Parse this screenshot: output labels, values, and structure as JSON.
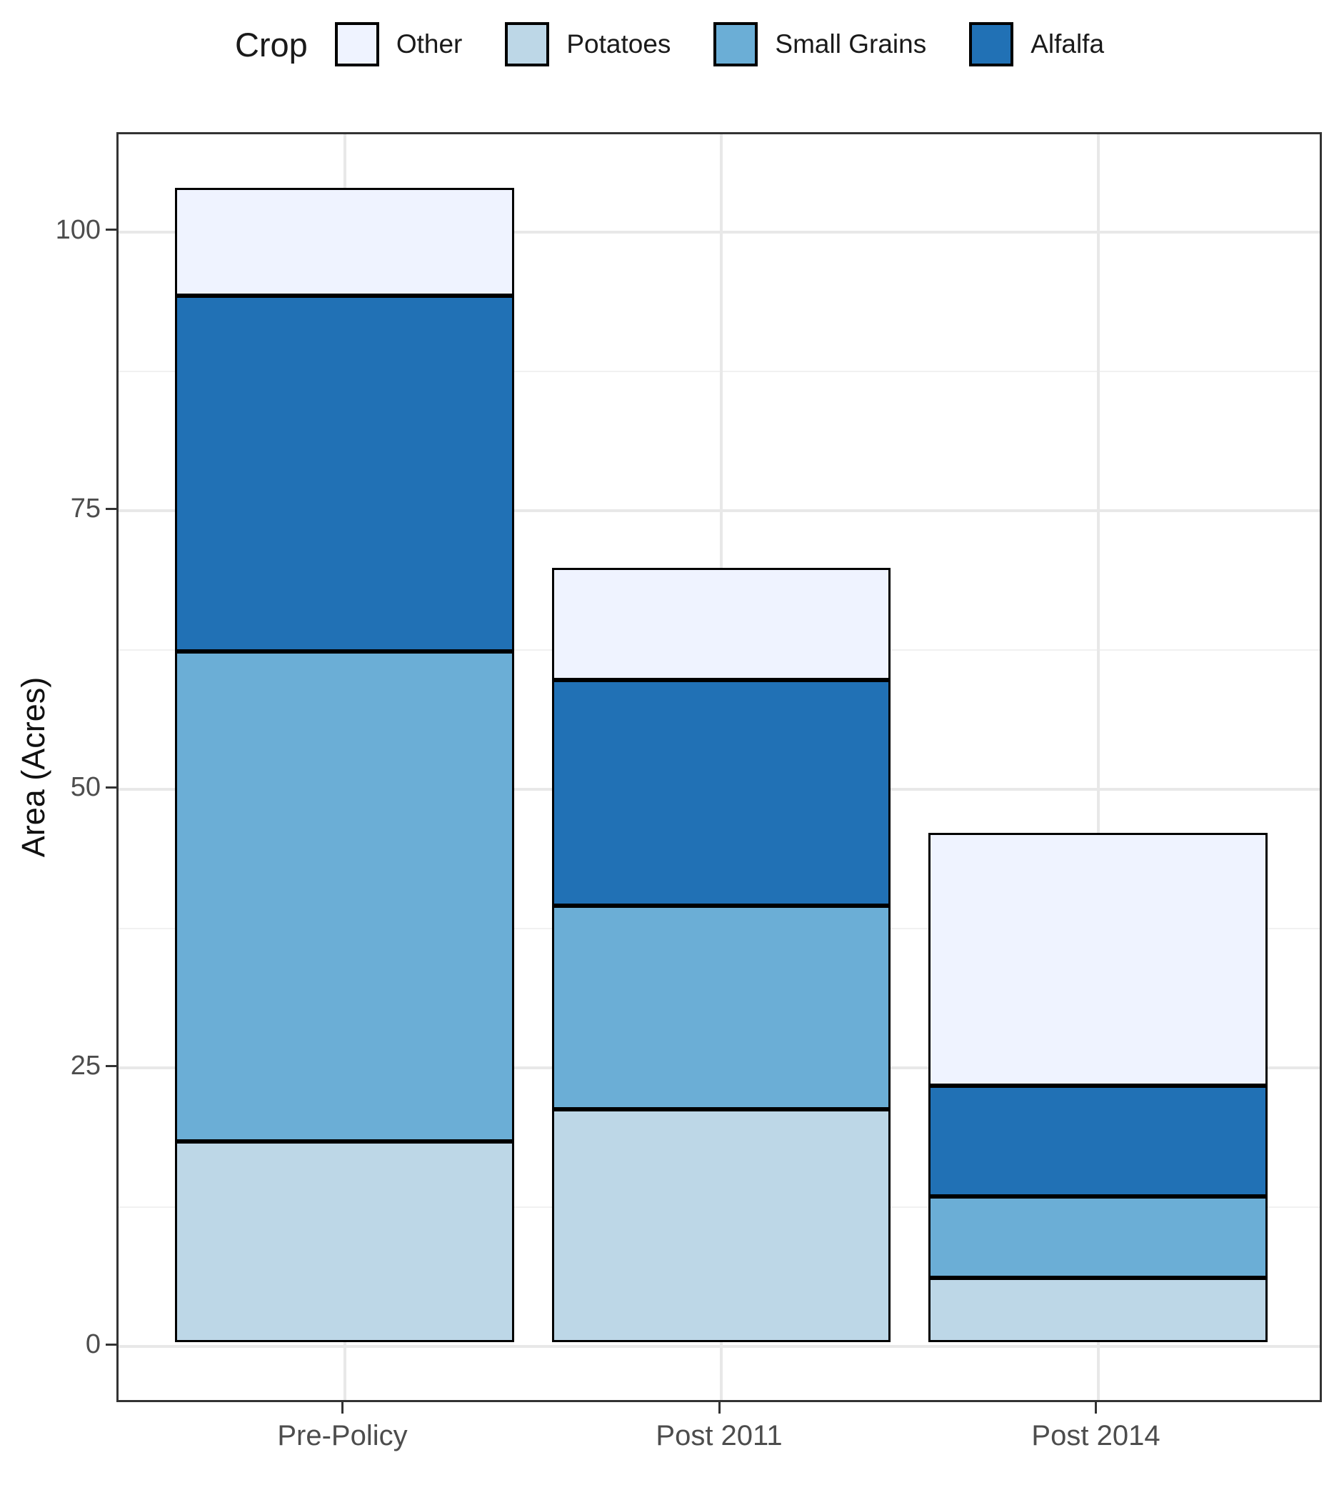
{
  "legend": {
    "title": "Crop",
    "items": [
      {
        "label": "Other",
        "color": "#EFF3FF"
      },
      {
        "label": "Potatoes",
        "color": "#BDD7E7"
      },
      {
        "label": "Small Grains",
        "color": "#6BAED6"
      },
      {
        "label": "Alfalfa",
        "color": "#2171B5"
      }
    ]
  },
  "axes": {
    "y_label": "Area (Acres)",
    "y_major_ticks": [
      0,
      25,
      50,
      75,
      100
    ],
    "y_minor_ticks": [
      12.5,
      37.5,
      62.5,
      87.5
    ],
    "x_categories": [
      "Pre-Policy",
      "Post 2011",
      "Post 2014"
    ]
  },
  "chart_data": {
    "type": "bar",
    "stacked": true,
    "title": "",
    "xlabel": "",
    "ylabel": "Area (Acres)",
    "categories": [
      "Pre-Policy",
      "Post 2011",
      "Post 2014"
    ],
    "series_bottom_to_top": [
      {
        "name": "Potatoes",
        "color": "#BDD7E7",
        "values": [
          18.0,
          20.9,
          5.8
        ]
      },
      {
        "name": "Small Grains",
        "color": "#6BAED6",
        "values": [
          44.0,
          18.3,
          7.3
        ]
      },
      {
        "name": "Alfalfa",
        "color": "#2171B5",
        "values": [
          31.9,
          20.2,
          9.9
        ]
      },
      {
        "name": "Other",
        "color": "#EFF3FF",
        "values": [
          9.7,
          10.1,
          22.7
        ]
      }
    ],
    "bar_totals": [
      103.6,
      69.5,
      45.7
    ],
    "ylim": [
      0,
      100
    ],
    "y_major_ticks": [
      0,
      25,
      50,
      75,
      100
    ],
    "y_minor_ticks": [
      12.5,
      37.5,
      62.5,
      87.5
    ],
    "grid": true,
    "legend_position": "top",
    "legend_title": "Crop",
    "legend_order": [
      "Other",
      "Potatoes",
      "Small Grains",
      "Alfalfa"
    ],
    "bar_edge_color": "#000000"
  }
}
